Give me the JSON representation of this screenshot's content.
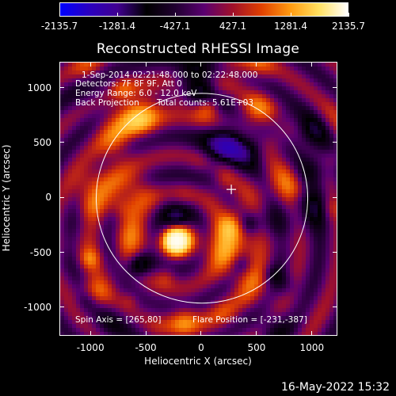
{
  "colorbar": {
    "ticks": [
      "-2135.7",
      "-1281.4",
      "-427.1",
      "427.1",
      "1281.4",
      "2135.7"
    ],
    "colors": [
      "#0000ff",
      "#2a00c0",
      "#400090",
      "#000000",
      "#200030",
      "#5a0070",
      "#a0102a",
      "#e04000",
      "#ff9a10",
      "#ffe060",
      "#ffffff"
    ]
  },
  "title": "Reconstructed RHESSI Image",
  "info": {
    "time": "1-Sep-2014 02:21:48.000 to 02:22:48.000",
    "detectors": "Detectors: 7F 8F 9F, Att 0",
    "energy": "Energy Range: 6.0 - 12.0 keV",
    "method": "Back Projection",
    "counts": "Total counts: 5.61E+03",
    "spin_axis": "Spin Axis = [265,80]",
    "flare_position": "Flare Position = [-231,-387]"
  },
  "axes": {
    "xlabel": "Heliocentric X (arcsec)",
    "ylabel": "Heliocentric Y (arcsec)",
    "xticks": [
      "-1000",
      "-500",
      "0",
      "500",
      "1000"
    ],
    "yticks": [
      "1000",
      "500",
      "0",
      "-500",
      "-1000"
    ],
    "xlim": [
      -1280,
      1230
    ],
    "ylim": [
      -1260,
      1235
    ]
  },
  "markers": {
    "limb_radius_arcsec": 955,
    "cross_position": [
      265,
      80
    ],
    "bright_source": [
      -231,
      -387
    ]
  },
  "footer_date": "16-May-2022 15:32"
}
